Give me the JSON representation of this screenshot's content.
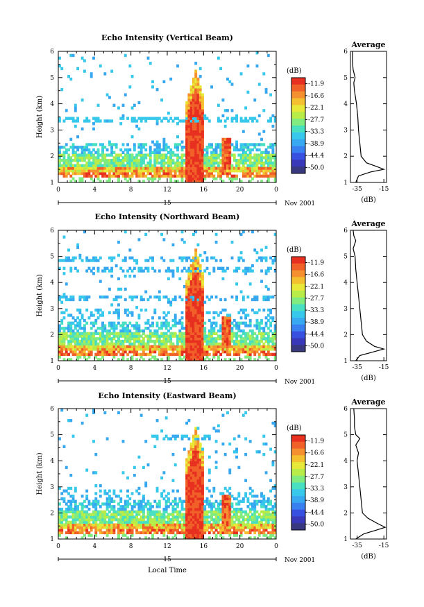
{
  "figure": {
    "date_label": "Nov 2001",
    "day_label": "15",
    "xlabel": "Local Time"
  },
  "colorbar": {
    "unit": "(dB)",
    "levels": [
      "-11.9",
      "-16.6",
      "-22.1",
      "-27.7",
      "-33.3",
      "-38.9",
      "-44.4",
      "-50.0"
    ],
    "colors": [
      "#e83020",
      "#f06028",
      "#f59030",
      "#f5c030",
      "#e8e838",
      "#b8ec48",
      "#80ec80",
      "#48e0c0",
      "#38c8ec",
      "#38a8f0",
      "#3880f0",
      "#3850e0",
      "#3838b8",
      "#383880"
    ]
  },
  "chart_data": [
    {
      "type": "heatmap",
      "title": "Echo Intensity (Vertical Beam)",
      "xlabel": "",
      "ylabel": "Height (km)",
      "xlim": [
        0,
        24
      ],
      "ylim": [
        1,
        6
      ],
      "xticks": [
        "0",
        "4",
        "8",
        "12",
        "16",
        "20",
        "0"
      ],
      "yticks": [
        "1",
        "2",
        "3",
        "4",
        "5",
        "6"
      ],
      "colorbar_unit": "dB",
      "profile": {
        "title": "Average",
        "xlabel": "(dB)",
        "xticks": [
          "-35",
          "-15"
        ],
        "xlim": [
          -40,
          -13
        ],
        "points": [
          [
            -36,
            1.0
          ],
          [
            -34,
            1.25
          ],
          [
            -25,
            1.4
          ],
          [
            -15,
            1.5
          ],
          [
            -20,
            1.6
          ],
          [
            -28,
            1.75
          ],
          [
            -32,
            2.0
          ],
          [
            -33,
            2.5
          ],
          [
            -34,
            3.0
          ],
          [
            -34.5,
            3.5
          ],
          [
            -35.5,
            4.0
          ],
          [
            -37,
            4.5
          ],
          [
            -37.5,
            4.8
          ],
          [
            -36.5,
            5.0
          ],
          [
            -38,
            5.3
          ],
          [
            -38.5,
            5.6
          ],
          [
            -38.5,
            6.0
          ]
        ]
      }
    },
    {
      "type": "heatmap",
      "title": "Echo Intensity (Northward Beam)",
      "xlabel": "",
      "ylabel": "Height (km)",
      "xlim": [
        0,
        24
      ],
      "ylim": [
        1,
        6
      ],
      "xticks": [
        "0",
        "4",
        "8",
        "12",
        "16",
        "20",
        "0"
      ],
      "yticks": [
        "1",
        "2",
        "3",
        "4",
        "5",
        "6"
      ],
      "colorbar_unit": "dB",
      "profile": {
        "title": "Average",
        "xlabel": "(dB)",
        "xticks": [
          "-35",
          "-15"
        ],
        "xlim": [
          -40,
          -13
        ],
        "points": [
          [
            -36,
            1.0
          ],
          [
            -33,
            1.2
          ],
          [
            -22,
            1.35
          ],
          [
            -15,
            1.45
          ],
          [
            -22,
            1.55
          ],
          [
            -28,
            1.75
          ],
          [
            -31,
            2.0
          ],
          [
            -32,
            2.5
          ],
          [
            -33,
            3.0
          ],
          [
            -34,
            3.5
          ],
          [
            -35,
            4.0
          ],
          [
            -36,
            4.5
          ],
          [
            -36.5,
            5.0
          ],
          [
            -38,
            5.3
          ],
          [
            -36,
            5.6
          ],
          [
            -37.5,
            5.8
          ],
          [
            -38,
            6.0
          ]
        ]
      }
    },
    {
      "type": "heatmap",
      "title": "Echo Intensity (Eastward Beam)",
      "xlabel": "Local Time",
      "ylabel": "Height (km)",
      "xlim": [
        0,
        24
      ],
      "ylim": [
        1,
        6
      ],
      "xticks": [
        "0",
        "4",
        "8",
        "12",
        "16",
        "20",
        "0"
      ],
      "yticks": [
        "1",
        "2",
        "3",
        "4",
        "5",
        "6"
      ],
      "colorbar_unit": "dB",
      "profile": {
        "title": "Average",
        "xlabel": "(dB)",
        "xticks": [
          "-35",
          "-15"
        ],
        "xlim": [
          -40,
          -13
        ],
        "points": [
          [
            -36,
            1.0
          ],
          [
            -30,
            1.2
          ],
          [
            -20,
            1.35
          ],
          [
            -14,
            1.45
          ],
          [
            -20,
            1.6
          ],
          [
            -27,
            1.8
          ],
          [
            -31,
            2.0
          ],
          [
            -32,
            2.5
          ],
          [
            -33,
            3.0
          ],
          [
            -34,
            3.5
          ],
          [
            -35,
            4.0
          ],
          [
            -34,
            4.3
          ],
          [
            -36,
            4.6
          ],
          [
            -33,
            4.85
          ],
          [
            -36,
            5.0
          ],
          [
            -37,
            5.3
          ],
          [
            -37,
            5.6
          ],
          [
            -37.5,
            6.0
          ]
        ]
      }
    }
  ]
}
